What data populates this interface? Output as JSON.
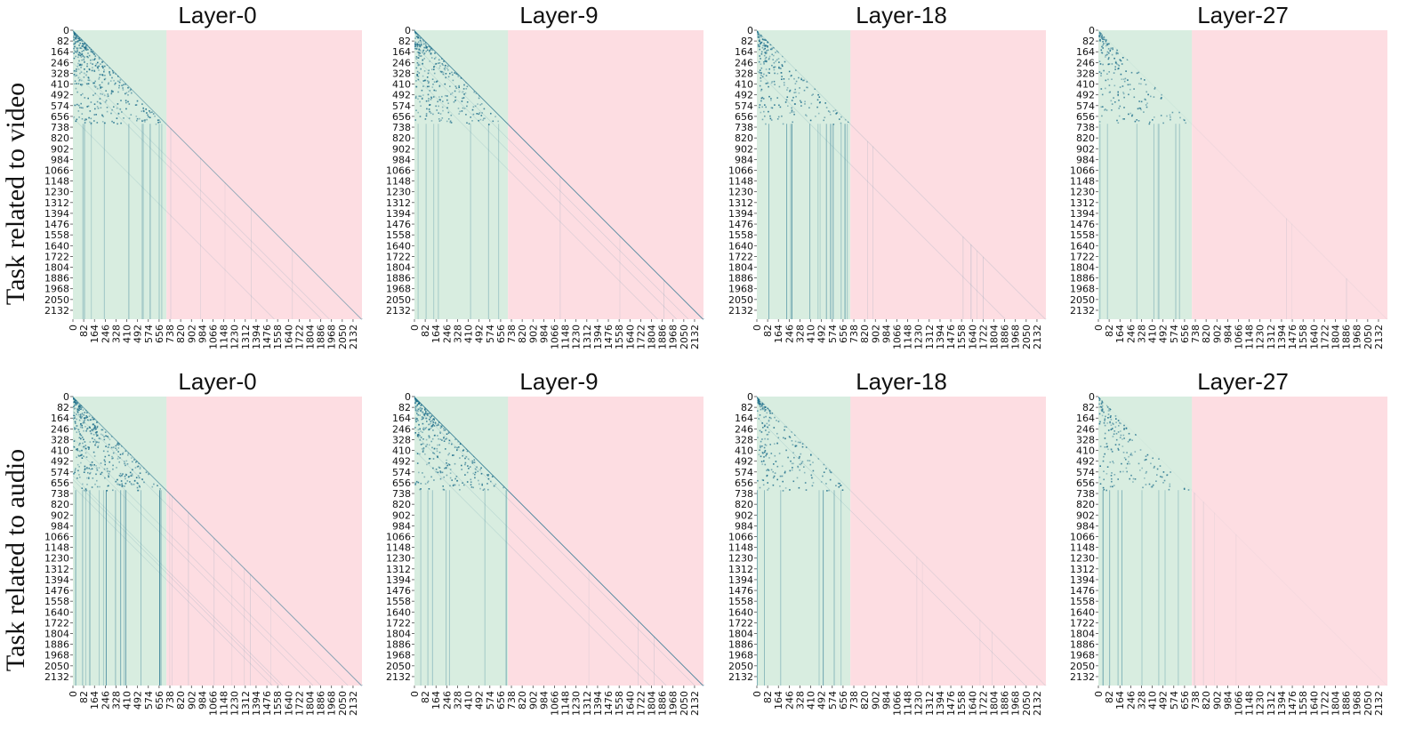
{
  "row_labels": [
    "Task related to video",
    "Task related to audio"
  ],
  "colors": {
    "green_region": "#d8ede0",
    "pink_region": "#fddde2",
    "attention_mark": "#1f6f8b",
    "text": "#111111"
  },
  "chart_data": [
    {
      "type": "heatmap",
      "row": "Task related to video",
      "title": "Layer-0",
      "xticks": [
        "0",
        "82",
        "164",
        "246",
        "328",
        "410",
        "492",
        "574",
        "656",
        "738",
        "820",
        "902",
        "984",
        "1066",
        "1148",
        "1230",
        "1312",
        "1394",
        "1476",
        "1558",
        "1640",
        "1722",
        "1804",
        "1886",
        "1968",
        "2050",
        "2132"
      ],
      "yticks": [
        "0",
        "82",
        "164",
        "246",
        "328",
        "410",
        "492",
        "574",
        "656",
        "738",
        "820",
        "902",
        "984",
        "1066",
        "1148",
        "1230",
        "1312",
        "1394",
        "1476",
        "1558",
        "1640",
        "1722",
        "1804",
        "1886",
        "1968",
        "2050",
        "2132"
      ],
      "xlim": [
        0,
        2200
      ],
      "ylim": [
        0,
        2200
      ],
      "green_region_end": 712,
      "attention_strength": {
        "vision_block": 0.9,
        "text_block": 0.45,
        "diagonal": 0.55
      }
    },
    {
      "type": "heatmap",
      "row": "Task related to video",
      "title": "Layer-9",
      "xticks": [
        "0",
        "82",
        "164",
        "246",
        "328",
        "410",
        "492",
        "574",
        "656",
        "738",
        "820",
        "902",
        "984",
        "1066",
        "1148",
        "1230",
        "1312",
        "1394",
        "1476",
        "1558",
        "1640",
        "1722",
        "1804",
        "1886",
        "1968",
        "2050",
        "2132"
      ],
      "yticks": [
        "0",
        "82",
        "164",
        "246",
        "328",
        "410",
        "492",
        "574",
        "656",
        "738",
        "820",
        "902",
        "984",
        "1066",
        "1148",
        "1230",
        "1312",
        "1394",
        "1476",
        "1558",
        "1640",
        "1722",
        "1804",
        "1886",
        "1968",
        "2050",
        "2132"
      ],
      "xlim": [
        0,
        2200
      ],
      "ylim": [
        0,
        2200
      ],
      "green_region_end": 712,
      "attention_strength": {
        "vision_block": 0.75,
        "text_block": 0.25,
        "diagonal": 0.85
      }
    },
    {
      "type": "heatmap",
      "row": "Task related to video",
      "title": "Layer-18",
      "xticks": [
        "0",
        "82",
        "164",
        "246",
        "328",
        "410",
        "492",
        "574",
        "656",
        "738",
        "820",
        "902",
        "984",
        "1066",
        "1148",
        "1230",
        "1312",
        "1394",
        "1476",
        "1558",
        "1640",
        "1722",
        "1804",
        "1886",
        "1968",
        "2050",
        "2132"
      ],
      "yticks": [
        "0",
        "82",
        "164",
        "246",
        "328",
        "410",
        "492",
        "574",
        "656",
        "738",
        "820",
        "902",
        "984",
        "1066",
        "1148",
        "1230",
        "1312",
        "1394",
        "1476",
        "1558",
        "1640",
        "1722",
        "1804",
        "1886",
        "1968",
        "2050",
        "2132"
      ],
      "xlim": [
        0,
        2200
      ],
      "ylim": [
        0,
        2200
      ],
      "green_region_end": 712,
      "attention_strength": {
        "vision_block": 0.6,
        "text_block": 0.7,
        "diagonal": 0.15
      }
    },
    {
      "type": "heatmap",
      "row": "Task related to video",
      "title": "Layer-27",
      "xticks": [
        "0",
        "82",
        "164",
        "246",
        "328",
        "410",
        "492",
        "574",
        "656",
        "738",
        "820",
        "902",
        "984",
        "1066",
        "1148",
        "1230",
        "1312",
        "1394",
        "1476",
        "1558",
        "1640",
        "1722",
        "1804",
        "1886",
        "1968",
        "2050",
        "2132"
      ],
      "yticks": [
        "0",
        "82",
        "164",
        "246",
        "328",
        "410",
        "492",
        "574",
        "656",
        "738",
        "820",
        "902",
        "984",
        "1066",
        "1148",
        "1230",
        "1312",
        "1394",
        "1476",
        "1558",
        "1640",
        "1722",
        "1804",
        "1886",
        "1968",
        "2050",
        "2132"
      ],
      "xlim": [
        0,
        2200
      ],
      "ylim": [
        0,
        2200
      ],
      "green_region_end": 712,
      "attention_strength": {
        "vision_block": 0.45,
        "text_block": 0.3,
        "diagonal": 0.05
      }
    },
    {
      "type": "heatmap",
      "row": "Task related to audio",
      "title": "Layer-0",
      "xticks": [
        "0",
        "82",
        "164",
        "246",
        "328",
        "410",
        "492",
        "574",
        "656",
        "738",
        "820",
        "902",
        "984",
        "1066",
        "1148",
        "1230",
        "1312",
        "1394",
        "1476",
        "1558",
        "1640",
        "1722",
        "1804",
        "1886",
        "1968",
        "2050",
        "2132"
      ],
      "yticks": [
        "0",
        "82",
        "164",
        "246",
        "328",
        "410",
        "492",
        "574",
        "656",
        "738",
        "820",
        "902",
        "984",
        "1066",
        "1148",
        "1230",
        "1312",
        "1394",
        "1476",
        "1558",
        "1640",
        "1722",
        "1804",
        "1886",
        "1968",
        "2050",
        "2132"
      ],
      "xlim": [
        0,
        2200
      ],
      "ylim": [
        0,
        2200
      ],
      "green_region_end": 712,
      "attention_strength": {
        "vision_block": 0.95,
        "text_block": 0.8,
        "diagonal": 0.65
      }
    },
    {
      "type": "heatmap",
      "row": "Task related to audio",
      "title": "Layer-9",
      "xticks": [
        "0",
        "82",
        "164",
        "246",
        "328",
        "410",
        "492",
        "574",
        "656",
        "738",
        "820",
        "902",
        "984",
        "1066",
        "1148",
        "1230",
        "1312",
        "1394",
        "1476",
        "1558",
        "1640",
        "1722",
        "1804",
        "1886",
        "1968",
        "2050",
        "2132"
      ],
      "yticks": [
        "0",
        "82",
        "164",
        "246",
        "328",
        "410",
        "492",
        "574",
        "656",
        "738",
        "820",
        "902",
        "984",
        "1066",
        "1148",
        "1230",
        "1312",
        "1394",
        "1476",
        "1558",
        "1640",
        "1722",
        "1804",
        "1886",
        "1968",
        "2050",
        "2132"
      ],
      "xlim": [
        0,
        2200
      ],
      "ylim": [
        0,
        2200
      ],
      "green_region_end": 712,
      "attention_strength": {
        "vision_block": 0.8,
        "text_block": 0.3,
        "diagonal": 0.9
      }
    },
    {
      "type": "heatmap",
      "row": "Task related to audio",
      "title": "Layer-18",
      "xticks": [
        "0",
        "82",
        "164",
        "246",
        "328",
        "410",
        "492",
        "574",
        "656",
        "738",
        "820",
        "902",
        "984",
        "1066",
        "1148",
        "1230",
        "1312",
        "1394",
        "1476",
        "1558",
        "1640",
        "1722",
        "1804",
        "1886",
        "1968",
        "2050",
        "2132"
      ],
      "yticks": [
        "0",
        "82",
        "164",
        "246",
        "328",
        "410",
        "492",
        "574",
        "656",
        "738",
        "820",
        "902",
        "984",
        "1066",
        "1148",
        "1230",
        "1312",
        "1394",
        "1476",
        "1558",
        "1640",
        "1722",
        "1804",
        "1886",
        "1968",
        "2050",
        "2132"
      ],
      "xlim": [
        0,
        2200
      ],
      "ylim": [
        0,
        2200
      ],
      "green_region_end": 712,
      "attention_strength": {
        "vision_block": 0.55,
        "text_block": 0.35,
        "diagonal": 0.12
      }
    },
    {
      "type": "heatmap",
      "row": "Task related to audio",
      "title": "Layer-27",
      "xticks": [
        "0",
        "82",
        "164",
        "246",
        "328",
        "410",
        "492",
        "574",
        "656",
        "738",
        "820",
        "902",
        "984",
        "1066",
        "1148",
        "1230",
        "1312",
        "1394",
        "1476",
        "1558",
        "1640",
        "1722",
        "1804",
        "1886",
        "1968",
        "2050",
        "2132"
      ],
      "yticks": [
        "0",
        "82",
        "164",
        "246",
        "328",
        "410",
        "492",
        "574",
        "656",
        "738",
        "820",
        "902",
        "984",
        "1066",
        "1148",
        "1230",
        "1312",
        "1394",
        "1476",
        "1558",
        "1640",
        "1722",
        "1804",
        "1886",
        "1968",
        "2050",
        "2132"
      ],
      "xlim": [
        0,
        2200
      ],
      "ylim": [
        0,
        2200
      ],
      "green_region_end": 712,
      "attention_strength": {
        "vision_block": 0.45,
        "text_block": 0.4,
        "diagonal": 0.03
      }
    }
  ]
}
